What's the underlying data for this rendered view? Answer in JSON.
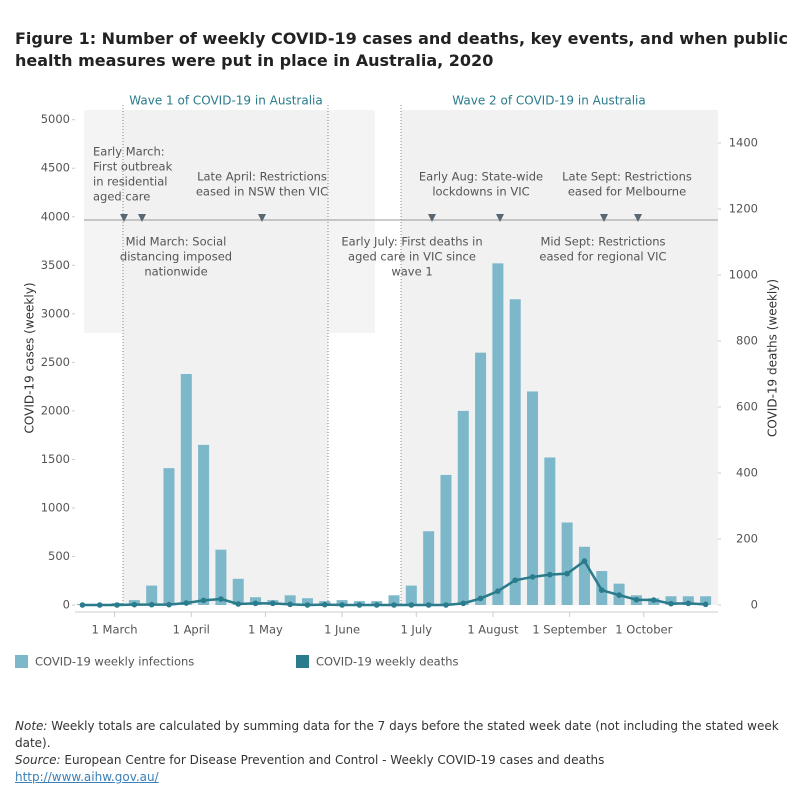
{
  "chart_data": {
    "type": "bar-line",
    "title": "Figure 1: Number of weekly COVID-19 cases and deaths, key events,  and when public health measures were put in place in Australia, 2020",
    "x": [
      "2020-02-17",
      "2020-02-24",
      "2020-03-02",
      "2020-03-09",
      "2020-03-16",
      "2020-03-23",
      "2020-03-30",
      "2020-04-06",
      "2020-04-13",
      "2020-04-20",
      "2020-04-27",
      "2020-05-04",
      "2020-05-11",
      "2020-05-18",
      "2020-05-25",
      "2020-06-01",
      "2020-06-08",
      "2020-06-15",
      "2020-06-22",
      "2020-06-29",
      "2020-07-06",
      "2020-07-13",
      "2020-07-20",
      "2020-07-27",
      "2020-08-03",
      "2020-08-10",
      "2020-08-17",
      "2020-08-24",
      "2020-08-31",
      "2020-09-07",
      "2020-09-14",
      "2020-09-21",
      "2020-09-28",
      "2020-10-05",
      "2020-10-12",
      "2020-10-19",
      "2020-10-26"
    ],
    "series": [
      {
        "name": "COVID-19 weekly infections",
        "color": "#7cb8c9",
        "kind": "bar",
        "values": [
          10,
          10,
          20,
          50,
          200,
          1410,
          2380,
          1650,
          570,
          270,
          80,
          50,
          100,
          70,
          40,
          50,
          40,
          40,
          100,
          200,
          760,
          1340,
          2000,
          2600,
          3520,
          3150,
          2200,
          1520,
          850,
          600,
          350,
          220,
          100,
          70,
          90,
          90,
          90
        ]
      },
      {
        "name": "COVID-19 weekly deaths",
        "color": "#2a7b8c",
        "kind": "line",
        "axis": "y2",
        "values": [
          0,
          0,
          0,
          1,
          1,
          1,
          6,
          14,
          18,
          3,
          5,
          5,
          2,
          0,
          1,
          0,
          0,
          0,
          0,
          0,
          0,
          0,
          5,
          20,
          42,
          75,
          85,
          92,
          95,
          133,
          45,
          30,
          16,
          15,
          4,
          5,
          2
        ]
      }
    ],
    "xlim": [
      "2020-02-14",
      "2020-10-31"
    ],
    "xticks": [
      {
        "value": "2020-03-01",
        "label": "1 March"
      },
      {
        "value": "2020-04-01",
        "label": "1 April"
      },
      {
        "value": "2020-05-01",
        "label": "1 May"
      },
      {
        "value": "2020-06-01",
        "label": "1 June"
      },
      {
        "value": "2020-07-01",
        "label": "1 July"
      },
      {
        "value": "2020-08-01",
        "label": "1 August"
      },
      {
        "value": "2020-09-01",
        "label": "1 September"
      },
      {
        "value": "2020-10-01",
        "label": "1 October"
      }
    ],
    "ylim": [
      0,
      5100
    ],
    "yticks": [
      0,
      500,
      1000,
      1500,
      2000,
      2500,
      3000,
      3500,
      4000,
      4500,
      5000
    ],
    "y2lim": [
      0,
      1500
    ],
    "y2ticks": [
      0,
      200,
      400,
      600,
      800,
      1000,
      1200,
      1400
    ],
    "ylabel": "COVID-19 cases (weekly)",
    "y2label": "COVID-19 deaths (weekly)",
    "waves": [
      "Wave 1 of COVID-19 in Australia",
      "Wave 2 of COVID-19 in Australia"
    ],
    "annotations": [
      [
        "Early March:",
        "First outbreak",
        "in residential",
        "aged care"
      ],
      [
        "Mid March: Social",
        "distancing imposed",
        "nationwide"
      ],
      [
        "Late April: Restrictions",
        "eased in NSW then VIC"
      ],
      [
        "Early July: First deaths in",
        "aged care in VIC since",
        "wave 1"
      ],
      [
        "Early Aug: State-wide",
        "lockdowns in VIC"
      ],
      [
        "Late Sept: Restrictions",
        "eased for Melbourne"
      ],
      [
        "Mid Sept: Restrictions",
        "eased for regional VIC"
      ]
    ]
  },
  "footer": {
    "note_label": "Note:",
    "note": "Weekly totals are calculated by summing data for the 7 days before the stated week date (not including the stated week date).",
    "source_label": "Source:",
    "source": "European Centre for Disease Prevention and Control - Weekly COVID-19 cases and deaths",
    "link": "http://www.aihw.gov.au/"
  }
}
